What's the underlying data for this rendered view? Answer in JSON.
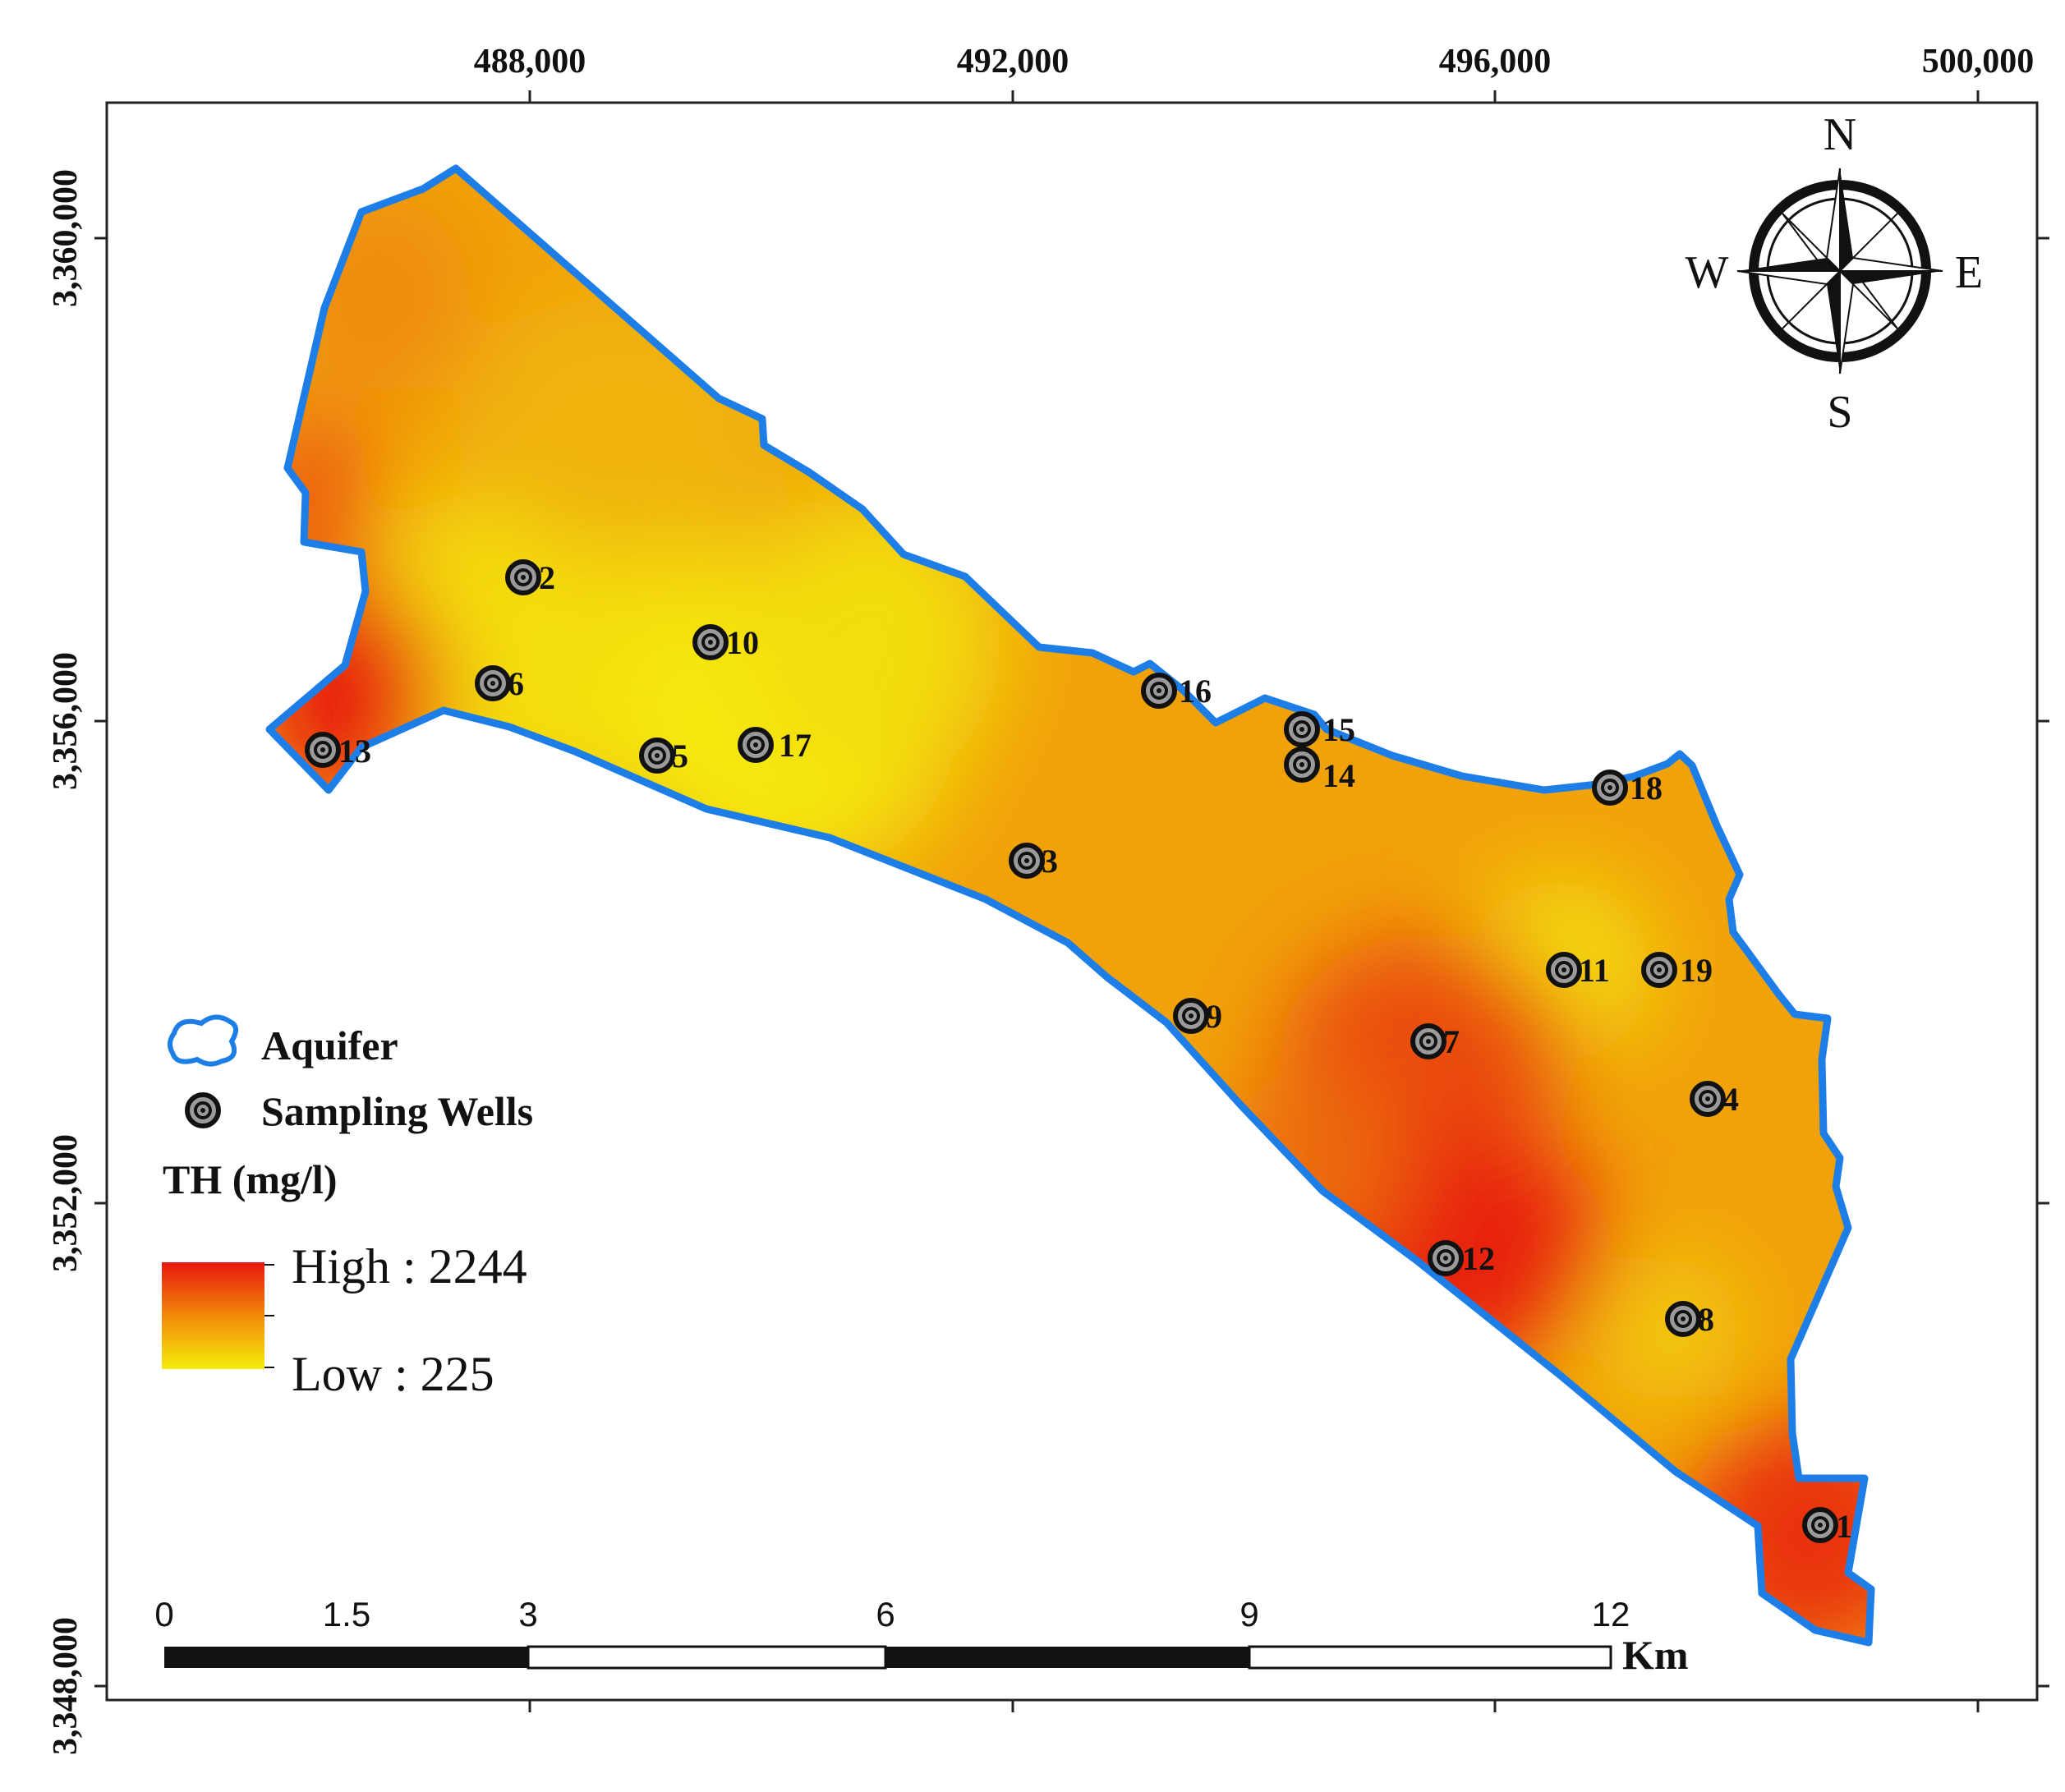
{
  "map": {
    "x_ticks": [
      "488,000",
      "492,000",
      "496,000",
      "500,000"
    ],
    "y_ticks": [
      "3,360,000",
      "3,356,000",
      "3,352,000",
      "3,348,000"
    ]
  },
  "compass": {
    "n": "N",
    "s": "S",
    "e": "E",
    "w": "W"
  },
  "legend": {
    "aquifer_label": "Aquifer",
    "wells_label": "Sampling Wells",
    "th_title": "TH (mg/l)",
    "high_label": "High : 2244",
    "low_label": "Low : 225",
    "colors": {
      "high": "#e8160f",
      "low": "#f5ec0a",
      "boundary": "#1e7ee8"
    }
  },
  "scale_bar": {
    "labels": [
      "0",
      "1.5",
      "3",
      "6",
      "9",
      "12"
    ],
    "unit": "Km"
  },
  "wells": [
    {
      "id": "1"
    },
    {
      "id": "2"
    },
    {
      "id": "3"
    },
    {
      "id": "4"
    },
    {
      "id": "5"
    },
    {
      "id": "6"
    },
    {
      "id": "7"
    },
    {
      "id": "8"
    },
    {
      "id": "9"
    },
    {
      "id": "10"
    },
    {
      "id": "11"
    },
    {
      "id": "12"
    },
    {
      "id": "13"
    },
    {
      "id": "14"
    },
    {
      "id": "15"
    },
    {
      "id": "16"
    },
    {
      "id": "17"
    },
    {
      "id": "18"
    },
    {
      "id": "19"
    }
  ]
}
